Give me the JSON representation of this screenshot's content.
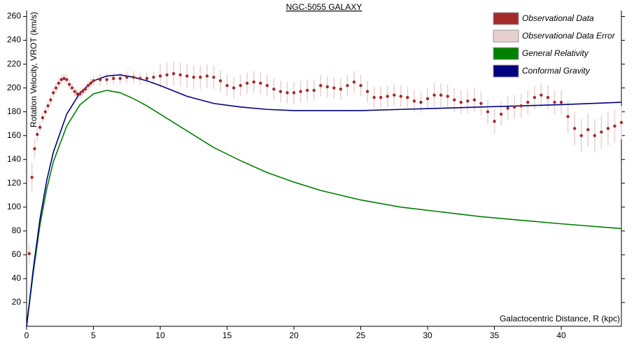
{
  "chart_data": {
    "type": "line",
    "title": "NGC-5055 GALAXY",
    "x_label": "Galactocentric Distance, R (kpc)",
    "y_label": "Rotation Velocity, VROT (km/s)",
    "xlim": [
      0,
      44.5
    ],
    "ylim": [
      0,
      265
    ],
    "xticks": [
      0,
      5,
      10,
      15,
      20,
      25,
      30,
      35,
      40
    ],
    "yticks": [
      20,
      40,
      60,
      80,
      100,
      120,
      140,
      160,
      180,
      200,
      220,
      240,
      260
    ],
    "legend": "top-right",
    "series": [
      {
        "name": "Observational Data",
        "color": "#a52a2a",
        "style": "points",
        "x": [
          0.2,
          0.4,
          0.6,
          0.8,
          1,
          1.2,
          1.4,
          1.6,
          1.8,
          2,
          2.2,
          2.4,
          2.6,
          2.8,
          3,
          3.2,
          3.4,
          3.6,
          3.8,
          4,
          4.2,
          4.4,
          4.6,
          4.8,
          5,
          5.5,
          6,
          6.5,
          7,
          7.5,
          8,
          8.5,
          9,
          9.5,
          10,
          10.5,
          11,
          11.5,
          12,
          12.5,
          13,
          13.5,
          14,
          14.5,
          15,
          15.5,
          16,
          16.5,
          17,
          17.5,
          18,
          18.5,
          19,
          19.5,
          20,
          20.5,
          21,
          21.5,
          22,
          22.5,
          23,
          23.5,
          24,
          24.5,
          25,
          25.5,
          26,
          26.5,
          27,
          27.5,
          28,
          28.5,
          29,
          29.5,
          30,
          30.5,
          31,
          31.5,
          32,
          32.5,
          33,
          33.5,
          34,
          34.5,
          35,
          35.5,
          36,
          36.5,
          37,
          37.5,
          38,
          38.5,
          39,
          39.5,
          40,
          40.5,
          41,
          41.5,
          42,
          42.5,
          43,
          43.5,
          44,
          44.5
        ],
        "values": [
          61,
          125,
          149,
          161,
          167,
          175,
          180,
          185,
          190,
          196,
          200,
          204,
          207,
          208,
          207,
          203,
          200,
          197,
          195,
          195,
          197,
          199,
          202,
          204,
          206,
          207,
          207,
          208,
          208,
          209,
          209,
          208,
          208,
          209,
          210,
          211,
          212,
          211,
          210,
          209,
          209,
          210,
          209,
          206,
          202,
          200,
          202,
          204,
          205,
          204,
          202,
          199,
          197,
          196,
          196,
          197,
          198,
          198,
          202,
          201,
          200,
          199,
          202,
          205,
          202,
          197,
          192,
          192,
          193,
          194,
          193,
          192,
          189,
          188,
          191,
          194,
          194,
          193,
          190,
          188,
          189,
          190,
          187,
          180,
          172,
          178,
          183,
          184,
          185,
          188,
          192,
          194,
          192,
          188,
          188,
          176,
          166,
          160,
          165,
          160,
          163,
          166,
          168,
          171
        ]
      },
      {
        "name": "Observational Data Error",
        "color": "#e8cfcf",
        "style": "errors",
        "values": [
          8,
          12,
          8,
          6,
          4,
          4,
          4,
          4,
          4,
          4,
          4,
          4,
          4,
          4,
          4,
          4,
          4,
          4,
          4,
          4,
          4,
          4,
          4,
          4,
          4,
          5,
          5,
          5,
          5,
          5,
          5,
          5,
          5,
          5,
          10,
          10,
          10,
          10,
          10,
          10,
          10,
          10,
          10,
          9,
          9,
          9,
          9,
          9,
          9,
          9,
          9,
          9,
          9,
          9,
          9,
          9,
          9,
          9,
          9,
          9,
          9,
          9,
          9,
          9,
          9,
          9,
          9,
          9,
          9,
          9,
          9,
          9,
          9,
          9,
          9,
          10,
          10,
          10,
          10,
          10,
          10,
          10,
          10,
          10,
          10,
          10,
          10,
          10,
          10,
          10,
          10,
          10,
          10,
          10,
          10,
          14,
          14,
          14,
          14,
          14,
          14,
          14,
          14,
          14
        ]
      },
      {
        "name": "General Relativity",
        "color": "#008000",
        "style": "line",
        "x": [
          0,
          0.5,
          1,
          1.5,
          2,
          3,
          4,
          5,
          6,
          7,
          8,
          9,
          10,
          12,
          14,
          16,
          18,
          20,
          22,
          25,
          28,
          31,
          34,
          37,
          40,
          44.5
        ],
        "values": [
          0,
          45,
          85,
          115,
          138,
          168,
          186,
          195,
          198,
          196,
          191,
          185,
          178,
          164,
          150,
          139,
          129,
          121,
          114,
          106,
          100,
          96,
          92,
          89,
          86,
          82
        ]
      },
      {
        "name": "Conformal Gravity",
        "color": "#000080",
        "style": "line",
        "x": [
          0,
          0.5,
          1,
          1.5,
          2,
          3,
          4,
          5,
          6,
          7,
          8,
          9,
          10,
          12,
          14,
          16,
          18,
          20,
          22,
          25,
          28,
          31,
          34,
          37,
          40,
          44.5
        ],
        "values": [
          0,
          48,
          90,
          122,
          146,
          178,
          196,
          206,
          210,
          211,
          209,
          206,
          202,
          193,
          187,
          184,
          182,
          181,
          181,
          181,
          182,
          183,
          184,
          185,
          186,
          188
        ]
      }
    ]
  }
}
